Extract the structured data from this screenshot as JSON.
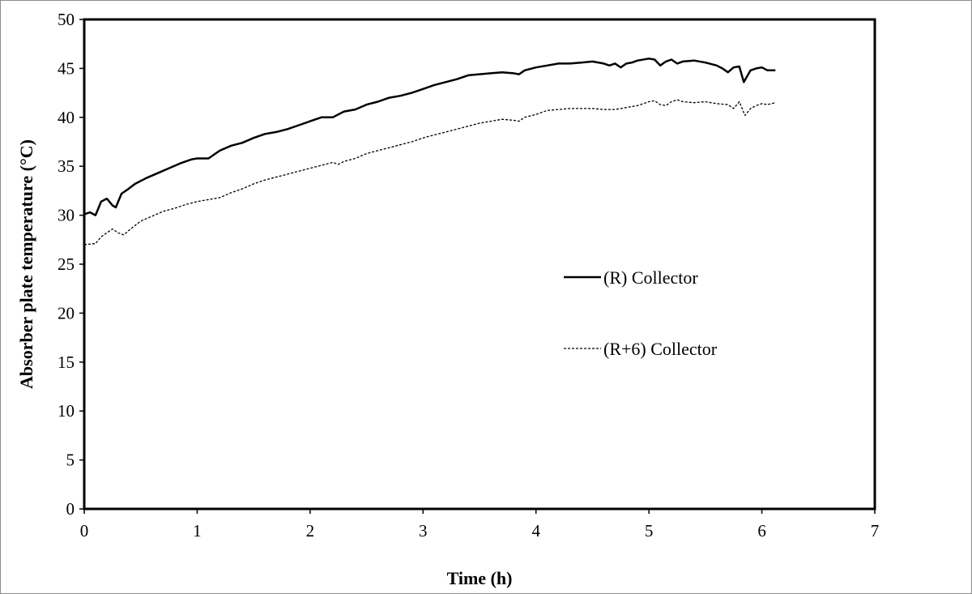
{
  "chart_data": {
    "type": "line",
    "xlabel": "Time (h)",
    "ylabel": "Absorber plate temperature (°C)",
    "xlim": [
      0,
      7
    ],
    "ylim": [
      0,
      50
    ],
    "xticks": [
      0,
      1,
      2,
      3,
      4,
      5,
      6,
      7
    ],
    "yticks": [
      0,
      5,
      10,
      15,
      20,
      25,
      30,
      35,
      40,
      45,
      50
    ],
    "grid": false,
    "legend_position": "right-middle",
    "colors": {
      "line": "#000000",
      "axis": "#000000"
    },
    "series": [
      {
        "name": "(R) Collector",
        "style": "solid",
        "x": [
          0,
          0.05,
          0.1,
          0.15,
          0.2,
          0.25,
          0.28,
          0.33,
          0.38,
          0.45,
          0.55,
          0.65,
          0.75,
          0.85,
          0.95,
          1.0,
          1.05,
          1.1,
          1.2,
          1.3,
          1.4,
          1.5,
          1.6,
          1.7,
          1.8,
          1.9,
          2.0,
          2.1,
          2.2,
          2.3,
          2.4,
          2.5,
          2.6,
          2.7,
          2.8,
          2.9,
          3.0,
          3.1,
          3.2,
          3.3,
          3.4,
          3.5,
          3.6,
          3.7,
          3.8,
          3.85,
          3.9,
          4.0,
          4.1,
          4.2,
          4.3,
          4.4,
          4.5,
          4.6,
          4.65,
          4.7,
          4.75,
          4.8,
          4.85,
          4.9,
          5.0,
          5.05,
          5.1,
          5.15,
          5.2,
          5.25,
          5.3,
          5.4,
          5.5,
          5.6,
          5.65,
          5.7,
          5.75,
          5.8,
          5.84,
          5.9,
          5.95,
          6.0,
          6.05,
          6.12
        ],
        "y": [
          30.1,
          30.3,
          30.0,
          31.4,
          31.7,
          31.0,
          30.8,
          32.2,
          32.6,
          33.2,
          33.8,
          34.3,
          34.8,
          35.3,
          35.7,
          35.8,
          35.8,
          35.8,
          36.6,
          37.1,
          37.4,
          37.9,
          38.3,
          38.5,
          38.8,
          39.2,
          39.6,
          40.0,
          40.0,
          40.6,
          40.8,
          41.3,
          41.6,
          42.0,
          42.2,
          42.5,
          42.9,
          43.3,
          43.6,
          43.9,
          44.3,
          44.4,
          44.5,
          44.6,
          44.5,
          44.4,
          44.8,
          45.1,
          45.3,
          45.5,
          45.5,
          45.6,
          45.7,
          45.5,
          45.3,
          45.5,
          45.1,
          45.5,
          45.6,
          45.8,
          46.0,
          45.9,
          45.3,
          45.7,
          45.9,
          45.5,
          45.7,
          45.8,
          45.6,
          45.3,
          45.0,
          44.6,
          45.1,
          45.2,
          43.6,
          44.8,
          45.0,
          45.1,
          44.8,
          44.8
        ]
      },
      {
        "name": "(R+6) Collector",
        "style": "dashed",
        "x": [
          0,
          0.1,
          0.15,
          0.2,
          0.25,
          0.3,
          0.35,
          0.4,
          0.5,
          0.6,
          0.7,
          0.8,
          0.9,
          1.0,
          1.1,
          1.2,
          1.3,
          1.4,
          1.5,
          1.6,
          1.7,
          1.8,
          1.9,
          2.0,
          2.1,
          2.2,
          2.25,
          2.3,
          2.4,
          2.5,
          2.6,
          2.7,
          2.8,
          2.9,
          3.0,
          3.1,
          3.2,
          3.3,
          3.4,
          3.5,
          3.6,
          3.7,
          3.8,
          3.85,
          3.9,
          4.0,
          4.1,
          4.2,
          4.3,
          4.4,
          4.5,
          4.6,
          4.7,
          4.8,
          4.9,
          5.0,
          5.05,
          5.1,
          5.15,
          5.2,
          5.25,
          5.3,
          5.4,
          5.5,
          5.6,
          5.7,
          5.75,
          5.8,
          5.85,
          5.9,
          5.95,
          6.0,
          6.05,
          6.12
        ],
        "y": [
          27.0,
          27.1,
          27.8,
          28.2,
          28.6,
          28.2,
          28.0,
          28.5,
          29.4,
          29.9,
          30.4,
          30.7,
          31.1,
          31.4,
          31.6,
          31.8,
          32.3,
          32.7,
          33.2,
          33.6,
          33.9,
          34.2,
          34.5,
          34.8,
          35.1,
          35.4,
          35.2,
          35.5,
          35.8,
          36.3,
          36.6,
          36.9,
          37.2,
          37.5,
          37.9,
          38.2,
          38.5,
          38.8,
          39.1,
          39.4,
          39.6,
          39.8,
          39.7,
          39.6,
          40.0,
          40.3,
          40.7,
          40.8,
          40.9,
          40.9,
          40.9,
          40.8,
          40.8,
          41.0,
          41.2,
          41.6,
          41.7,
          41.3,
          41.2,
          41.6,
          41.8,
          41.6,
          41.5,
          41.6,
          41.4,
          41.3,
          40.9,
          41.6,
          40.2,
          40.9,
          41.2,
          41.4,
          41.3,
          41.5
        ]
      }
    ]
  }
}
